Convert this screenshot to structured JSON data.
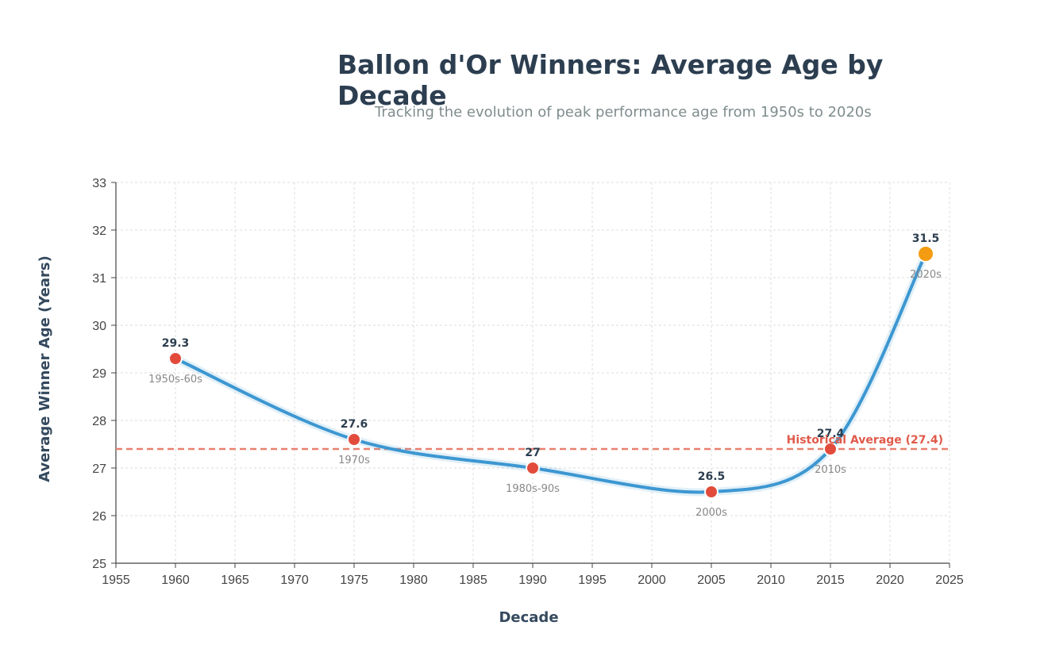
{
  "chart_data": {
    "type": "line",
    "title": "Ballon d'Or Winners: Average Age by Decade",
    "subtitle": "Tracking the evolution of peak performance age from 1950s to 2020s",
    "xlabel": "Decade",
    "ylabel": "Average Winner Age (Years)",
    "xlim": [
      1955,
      2025
    ],
    "ylim": [
      25,
      33
    ],
    "xticks": [
      1955,
      1960,
      1965,
      1970,
      1975,
      1980,
      1985,
      1990,
      1995,
      2000,
      2005,
      2010,
      2015,
      2020,
      2025
    ],
    "yticks": [
      25,
      26,
      27,
      28,
      29,
      30,
      31,
      32,
      33
    ],
    "grid": true,
    "points": [
      {
        "x": 1960,
        "y": 29.3,
        "value_label": "29.3",
        "category": "1950s-60s",
        "highlight": false
      },
      {
        "x": 1975,
        "y": 27.6,
        "value_label": "27.6",
        "category": "1970s",
        "highlight": false
      },
      {
        "x": 1990,
        "y": 27,
        "value_label": "27",
        "category": "1980s-90s",
        "highlight": false
      },
      {
        "x": 2005,
        "y": 26.5,
        "value_label": "26.5",
        "category": "2000s",
        "highlight": false
      },
      {
        "x": 2015,
        "y": 27.4,
        "value_label": "27.4",
        "category": "2010s",
        "highlight": false
      },
      {
        "x": 2023,
        "y": 31.5,
        "value_label": "31.5",
        "category": "2020s",
        "highlight": true
      }
    ],
    "reference_line": {
      "y": 27.4,
      "label": "Historical Average (27.4)"
    },
    "colors": {
      "line": "#3d97d1",
      "point": "#e24b3c",
      "highlight_point": "#f39c12",
      "reference": "#e9806f",
      "grid": "#dcdcdc",
      "axis": "#444444"
    }
  }
}
